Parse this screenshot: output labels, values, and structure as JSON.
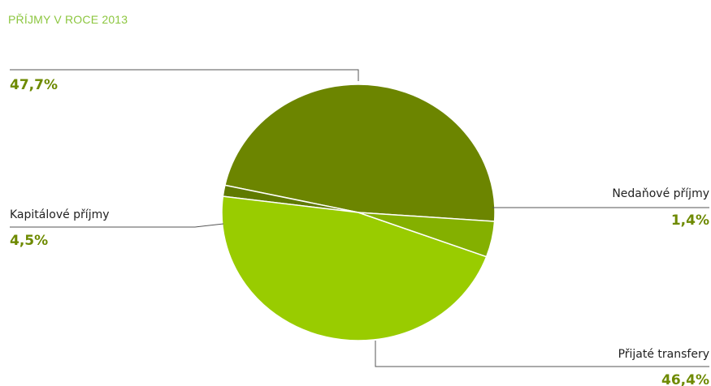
{
  "chart_data": {
    "type": "pie",
    "title": "PŘÍJMY V ROCE 2013",
    "slices": [
      {
        "label": "",
        "value": 47.7,
        "display": "47,7%",
        "color": "#6c8500"
      },
      {
        "label": "Nedaňové příjmy",
        "value": 1.4,
        "display": "1,4%",
        "color": "#5f7a00"
      },
      {
        "label": "Přijaté transfery",
        "value": 46.4,
        "display": "46,4%",
        "color": "#99cc00"
      },
      {
        "label": "Kapitálové příjmy",
        "value": 4.5,
        "display": "4,5%",
        "color": "#84b000"
      }
    ]
  }
}
